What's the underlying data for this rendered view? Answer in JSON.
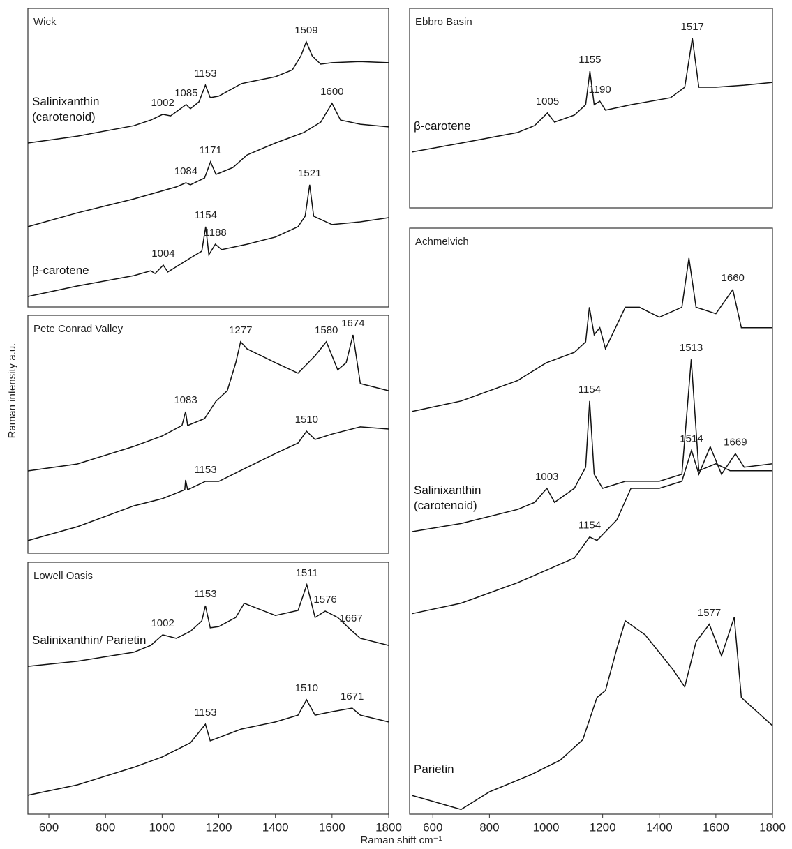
{
  "xlabel": "Raman shift cm⁻¹",
  "ylabel": "Raman intensity a.u.",
  "chart_data": [
    {
      "type": "line",
      "title": "Wick",
      "xlim": [
        526,
        1800
      ],
      "ylim": [
        0,
        100
      ],
      "color": "#111111",
      "series": [
        {
          "name": "Salinixanthin (carotenoid)",
          "x": [
            526,
            700,
            900,
            960,
            1002,
            1030,
            1085,
            1100,
            1130,
            1153,
            1170,
            1200,
            1280,
            1300,
            1400,
            1460,
            1490,
            1509,
            1530,
            1560,
            1600,
            1700,
            1800
          ],
          "values": [
            54.9,
            57.2,
            60.7,
            62.6,
            64.5,
            64.0,
            67.8,
            66.4,
            68.7,
            74.3,
            70.1,
            70.6,
            74.8,
            75.2,
            77.1,
            79.4,
            84.1,
            88.8,
            84.1,
            81.3,
            81.8,
            82.2,
            81.8
          ],
          "peaks": [
            1002,
            1085,
            1153,
            1509
          ]
        },
        {
          "x": [
            526,
            700,
            900,
            1050,
            1084,
            1100,
            1150,
            1171,
            1190,
            1250,
            1300,
            1400,
            1500,
            1560,
            1600,
            1630,
            1700,
            1800
          ],
          "values": [
            26.9,
            31.5,
            36.2,
            40.2,
            41.6,
            40.9,
            43.2,
            48.6,
            44.4,
            46.7,
            50.9,
            54.9,
            58.4,
            61.9,
            68.2,
            62.6,
            61.2,
            60.3
          ],
          "peaks": [
            1084,
            1171,
            1600
          ]
        },
        {
          "name": "β-carotene",
          "x": [
            526,
            700,
            900,
            960,
            975,
            1004,
            1020,
            1100,
            1140,
            1154,
            1165,
            1188,
            1210,
            1300,
            1400,
            1480,
            1505,
            1521,
            1535,
            1600,
            1700,
            1800
          ],
          "values": [
            3.5,
            7.0,
            10.5,
            12.1,
            11.2,
            14.0,
            11.7,
            16.4,
            18.7,
            26.9,
            17.5,
            21.0,
            19.2,
            21.0,
            23.4,
            26.9,
            30.4,
            40.9,
            30.4,
            27.6,
            28.5,
            29.9
          ],
          "peaks": [
            1004,
            1154,
            1188,
            1521
          ]
        }
      ]
    },
    {
      "type": "line",
      "title": "Pete Conrad Valley",
      "xlim": [
        526,
        1800
      ],
      "ylim": [
        0,
        100
      ],
      "color": "#111111",
      "series": [
        {
          "x": [
            526,
            700,
            900,
            1000,
            1070,
            1083,
            1090,
            1150,
            1190,
            1230,
            1260,
            1277,
            1300,
            1400,
            1480,
            1540,
            1580,
            1620,
            1650,
            1674,
            1700,
            1800
          ],
          "values": [
            34.6,
            37.5,
            44.9,
            49.3,
            53.7,
            59.5,
            53.7,
            56.6,
            63.9,
            68.3,
            80.1,
            88.9,
            85.9,
            80.1,
            75.7,
            83.0,
            88.9,
            77.1,
            80.1,
            91.8,
            71.3,
            68.3
          ],
          "peaks": [
            1083,
            1277,
            1580,
            1674
          ]
        },
        {
          "x": [
            526,
            700,
            900,
            1000,
            1080,
            1083,
            1090,
            1153,
            1200,
            1300,
            1400,
            1480,
            1510,
            1540,
            1600,
            1700,
            1800
          ],
          "values": [
            5.3,
            11.1,
            19.9,
            22.9,
            26.7,
            30.8,
            26.7,
            30.2,
            30.2,
            36.1,
            41.9,
            46.3,
            51.3,
            47.8,
            50.1,
            53.1,
            52.2
          ],
          "peaks": [
            1153,
            1510
          ]
        }
      ]
    },
    {
      "type": "line",
      "title": "Lowell Oasis",
      "xlim": [
        526,
        1800
      ],
      "ylim": [
        0,
        100
      ],
      "color": "#111111",
      "xticks": [
        600,
        800,
        1000,
        1200,
        1400,
        1600,
        1800
      ],
      "series": [
        {
          "name": "Salinixanthin/ Parietin",
          "x": [
            526,
            700,
            900,
            960,
            1002,
            1050,
            1100,
            1140,
            1153,
            1170,
            1200,
            1260,
            1290,
            1400,
            1480,
            1511,
            1540,
            1576,
            1620,
            1667,
            1700,
            1800
          ],
          "values": [
            58.7,
            60.7,
            64.3,
            67.0,
            71.2,
            69.8,
            72.6,
            76.7,
            82.8,
            74.0,
            74.5,
            78.1,
            83.7,
            78.9,
            80.9,
            91.1,
            78.1,
            80.6,
            78.1,
            73.1,
            69.8,
            67.0
          ],
          "peaks": [
            1002,
            1153,
            1511,
            1576,
            1667
          ]
        },
        {
          "x": [
            526,
            700,
            900,
            1000,
            1100,
            1153,
            1170,
            1280,
            1400,
            1480,
            1510,
            1540,
            1600,
            1671,
            1700,
            1800
          ],
          "values": [
            7.5,
            11.6,
            18.6,
            22.7,
            28.3,
            35.7,
            29.1,
            33.8,
            36.6,
            39.3,
            45.4,
            39.3,
            40.7,
            42.1,
            39.3,
            36.6
          ],
          "peaks": [
            1153,
            1510,
            1671
          ]
        }
      ]
    },
    {
      "type": "line",
      "title": "Ebbro Basin",
      "xlim": [
        518,
        1800
      ],
      "ylim": [
        0,
        100
      ],
      "color": "#111111",
      "series": [
        {
          "name": "β-carotene",
          "x": [
            526,
            700,
            900,
            960,
            1005,
            1030,
            1100,
            1140,
            1155,
            1170,
            1190,
            1210,
            1300,
            1440,
            1490,
            1517,
            1540,
            1600,
            1700,
            1800
          ],
          "values": [
            28.0,
            32.5,
            37.8,
            41.3,
            47.6,
            43.0,
            46.5,
            51.7,
            68.5,
            51.7,
            53.5,
            49.0,
            51.7,
            55.2,
            60.5,
            85.0,
            60.5,
            60.5,
            61.5,
            62.9
          ],
          "peaks": [
            1005,
            1155,
            1190,
            1517
          ]
        }
      ]
    },
    {
      "type": "line",
      "title": "Achmelvich",
      "xlim": [
        518,
        1800
      ],
      "ylim": [
        0,
        100
      ],
      "color": "#111111",
      "xticks": [
        600,
        800,
        1000,
        1200,
        1400,
        1600,
        1800
      ],
      "series": [
        {
          "x": [
            526,
            700,
            900,
            1000,
            1100,
            1140,
            1153,
            1170,
            1190,
            1210,
            1280,
            1330,
            1400,
            1480,
            1505,
            1530,
            1600,
            1660,
            1690,
            1800
          ],
          "values": [
            68.7,
            70.5,
            74.0,
            77.0,
            78.8,
            80.6,
            86.5,
            81.8,
            83.0,
            79.4,
            86.5,
            86.5,
            84.8,
            86.5,
            94.9,
            86.5,
            85.4,
            89.5,
            83.0,
            83.0
          ],
          "peaks": [
            1660
          ]
        },
        {
          "name": "Salinixanthin (carotenoid)",
          "x": [
            526,
            700,
            900,
            960,
            1003,
            1030,
            1100,
            1140,
            1154,
            1170,
            1200,
            1280,
            1400,
            1480,
            1513,
            1540,
            1600,
            1650,
            1800
          ],
          "values": [
            48.2,
            49.6,
            52.0,
            53.2,
            55.6,
            53.2,
            55.6,
            59.2,
            70.5,
            58.0,
            55.6,
            56.8,
            56.8,
            58.0,
            77.6,
            58.6,
            59.8,
            58.6,
            58.6
          ],
          "peaks": [
            1003,
            1154,
            1513
          ]
        },
        {
          "x": [
            526,
            700,
            900,
            1100,
            1154,
            1180,
            1250,
            1300,
            1400,
            1480,
            1514,
            1540,
            1580,
            1620,
            1669,
            1700,
            1800
          ],
          "values": [
            34.2,
            36.0,
            39.5,
            43.7,
            47.3,
            46.7,
            50.2,
            55.6,
            55.6,
            56.8,
            62.1,
            58.0,
            62.7,
            58.0,
            61.5,
            59.2,
            59.8
          ],
          "peaks": [
            1154,
            1514,
            1669
          ]
        },
        {
          "name": "Parietin",
          "x": [
            526,
            700,
            800,
            950,
            1050,
            1130,
            1180,
            1210,
            1250,
            1280,
            1350,
            1450,
            1490,
            1530,
            1577,
            1620,
            1665,
            1690,
            1800
          ],
          "values": [
            3.2,
            0.8,
            3.8,
            6.8,
            9.2,
            12.7,
            19.9,
            21.1,
            28.2,
            33.0,
            30.6,
            24.6,
            21.7,
            29.4,
            32.4,
            27.0,
            33.6,
            19.9,
            15.1
          ],
          "peaks": [
            1577
          ]
        }
      ]
    }
  ]
}
